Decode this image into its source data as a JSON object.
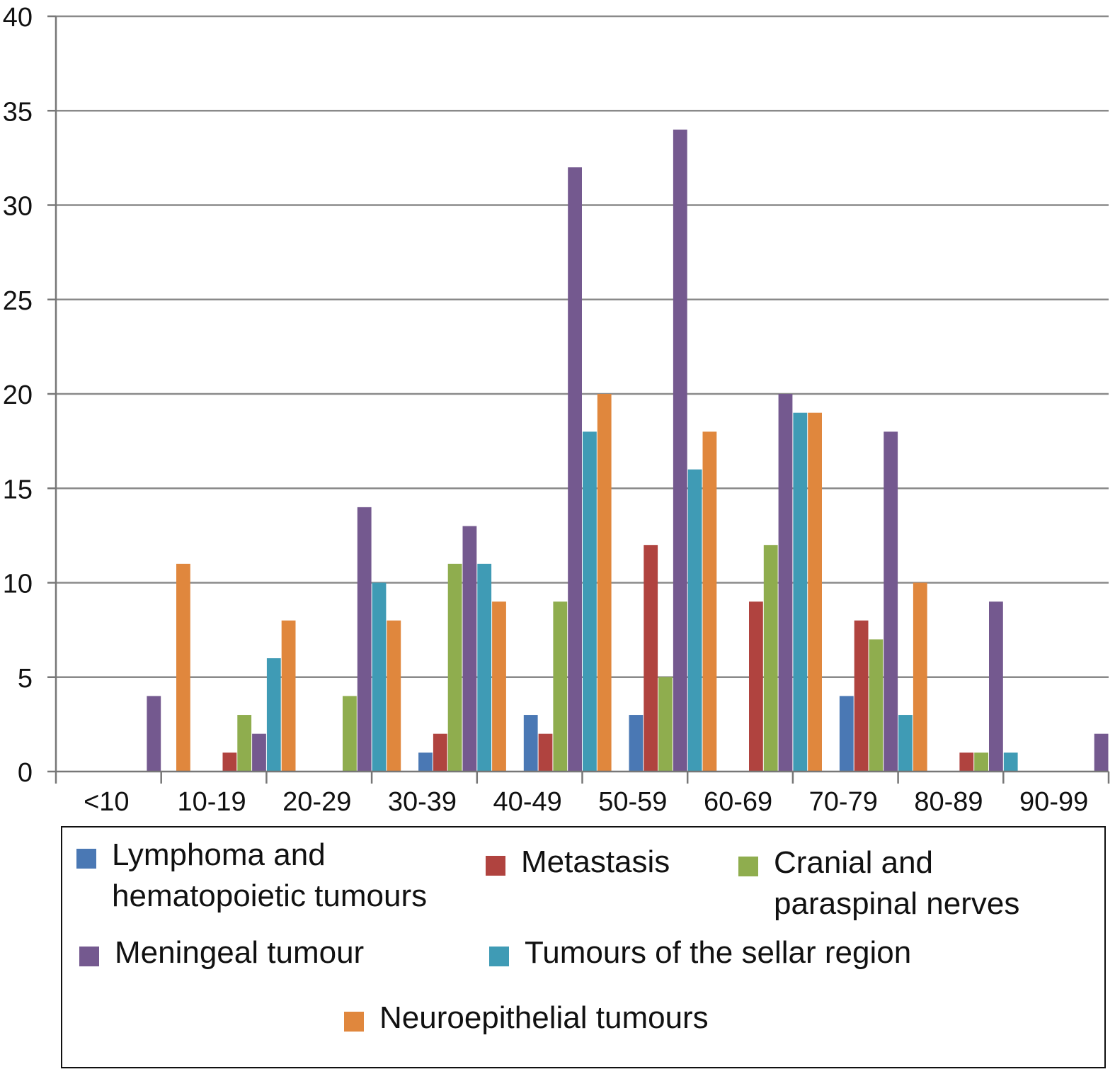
{
  "chart_data": {
    "type": "bar",
    "categories": [
      "<10",
      "10-19",
      "20-29",
      "30-39",
      "40-49",
      "50-59",
      "60-69",
      "70-79",
      "80-89",
      "90-99"
    ],
    "series": [
      {
        "name": "Lymphoma and hematopoietic tumours",
        "color": "#4a78b4",
        "values": [
          0,
          0,
          0,
          1,
          3,
          3,
          0,
          4,
          0,
          0
        ]
      },
      {
        "name": "Metastasis",
        "color": "#b0433f",
        "values": [
          0,
          1,
          0,
          2,
          2,
          12,
          9,
          8,
          1,
          0
        ]
      },
      {
        "name": "Cranial and paraspinal nerves",
        "color": "#8fad4e",
        "values": [
          0,
          3,
          4,
          11,
          9,
          5,
          12,
          7,
          1,
          0
        ]
      },
      {
        "name": "Meningeal tumour",
        "color": "#74598f",
        "values": [
          4,
          2,
          14,
          13,
          32,
          34,
          20,
          18,
          9,
          2
        ]
      },
      {
        "name": "Tumours of the sellar region",
        "color": "#3f9bb5",
        "values": [
          0,
          6,
          10,
          11,
          18,
          16,
          19,
          3,
          1,
          0
        ]
      },
      {
        "name": "Neuroepithelial tumours",
        "color": "#e0873d",
        "values": [
          11,
          8,
          8,
          9,
          20,
          18,
          19,
          10,
          0,
          0
        ]
      }
    ],
    "ylim": [
      0,
      40
    ],
    "yticks": [
      "0",
      "5",
      "10",
      "15",
      "20",
      "25",
      "30",
      "35",
      "40"
    ],
    "grid": true,
    "legend_position": "bottom",
    "title": "",
    "xlabel": "",
    "ylabel": ""
  }
}
